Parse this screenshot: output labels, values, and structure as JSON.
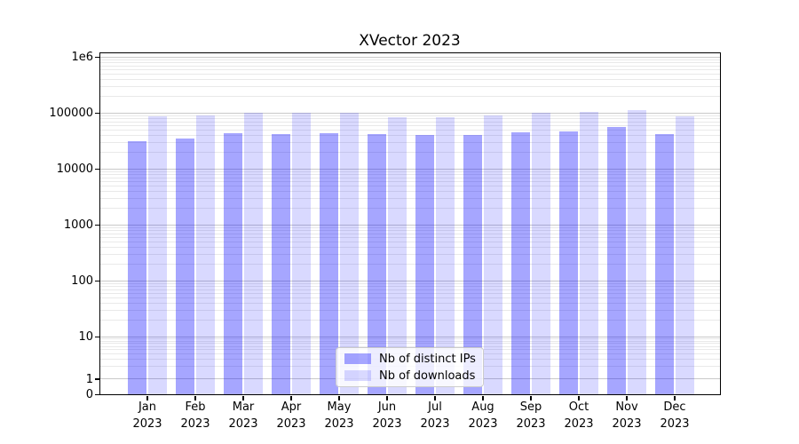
{
  "chart_data": {
    "type": "bar",
    "title": "XVector 2023",
    "months": [
      "Jan",
      "Feb",
      "Mar",
      "Apr",
      "May",
      "Jun",
      "Jul",
      "Aug",
      "Sep",
      "Oct",
      "Nov",
      "Dec"
    ],
    "year": "2023",
    "series": [
      {
        "name": "Nb of distinct IPs",
        "color": "rgba(0,0,255,0.35)",
        "values": [
          32000,
          36000,
          44000,
          43000,
          44000,
          42000,
          41000,
          41000,
          46000,
          48000,
          57000,
          43000
        ]
      },
      {
        "name": "Nb of downloads",
        "color": "rgba(0,0,255,0.15)",
        "values": [
          89000,
          93000,
          104000,
          101000,
          103000,
          86000,
          84000,
          93000,
          104000,
          108000,
          115000,
          88000
        ]
      }
    ],
    "yscale": "symlog",
    "ylim": [
      0,
      1200000
    ],
    "ytick_labels": [
      "1e6",
      "100000",
      "10000",
      "1000",
      "100",
      "10",
      "1",
      "0"
    ],
    "grid": true,
    "legend_position": "lower center"
  },
  "colors": {
    "grid_major": "#c9c9c9",
    "grid_minor": "#e9e9e9",
    "axis": "#000000",
    "background": "#ffffff"
  }
}
